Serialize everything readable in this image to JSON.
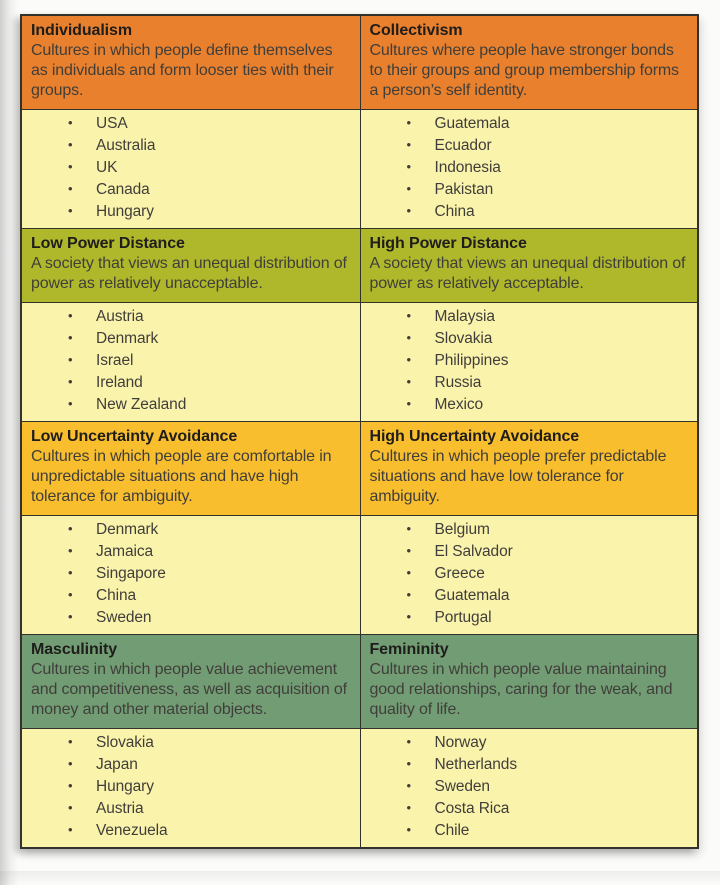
{
  "page": {
    "background": "#fbfbfa",
    "description_of_artifact": "Scanned table of Hofstede cultural dimensions with example countries"
  },
  "table": {
    "colors": {
      "border": "#33312b",
      "list_bg": "#faf3ac",
      "title_text": "#1f1d1b",
      "body_text": "#403e3a"
    },
    "sections": [
      {
        "header_bg": "#e8802d",
        "left": {
          "title": "Individualism",
          "description": "Cultures in which people define themselves as individuals and form looser ties with their groups.",
          "countries": [
            "USA",
            "Australia",
            "UK",
            "Canada",
            "Hungary"
          ]
        },
        "right": {
          "title": "Collectivism",
          "description": "Cultures where people have stronger bonds to their groups and group membership forms a person’s self identity.",
          "countries": [
            "Guatemala",
            "Ecuador",
            "Indonesia",
            "Pakistan",
            "China"
          ]
        }
      },
      {
        "header_bg": "#afb82b",
        "left": {
          "title": "Low Power Distance",
          "description": "A society that views an unequal distribution of power as relatively unacceptable.",
          "countries": [
            "Austria",
            "Denmark",
            "Israel",
            "Ireland",
            "New Zealand"
          ]
        },
        "right": {
          "title": "High Power Distance",
          "description": "A society that views an unequal distribution of power as relatively acceptable.",
          "countries": [
            "Malaysia",
            "Slovakia",
            "Philippines",
            "Russia",
            "Mexico"
          ]
        }
      },
      {
        "header_bg": "#f8be2e",
        "left": {
          "title": "Low Uncertainty Avoidance",
          "description": "Cultures in which people are comfortable in unpredictable situations and have high tolerance for ambiguity.",
          "countries": [
            "Denmark",
            "Jamaica",
            "Singapore",
            "China",
            "Sweden"
          ]
        },
        "right": {
          "title": "High Uncertainty Avoidance",
          "description": "Cultures in which people prefer predictable situations and have low tolerance for ambiguity.",
          "countries": [
            "Belgium",
            "El Salvador",
            "Greece",
            "Guatemala",
            "Portugal"
          ]
        }
      },
      {
        "header_bg": "#729d74",
        "left": {
          "title": "Masculinity",
          "description": "Cultures in which people value achievement and competitiveness, as well as acquisition of money and other material objects.",
          "countries": [
            "Slovakia",
            "Japan",
            "Hungary",
            "Austria",
            "Venezuela"
          ]
        },
        "right": {
          "title": "Femininity",
          "description": "Cultures in which people value maintaining good relationships, caring for the weak, and quality of life.",
          "countries": [
            "Norway",
            "Netherlands",
            "Sweden",
            "Costa Rica",
            "Chile"
          ]
        }
      }
    ]
  }
}
